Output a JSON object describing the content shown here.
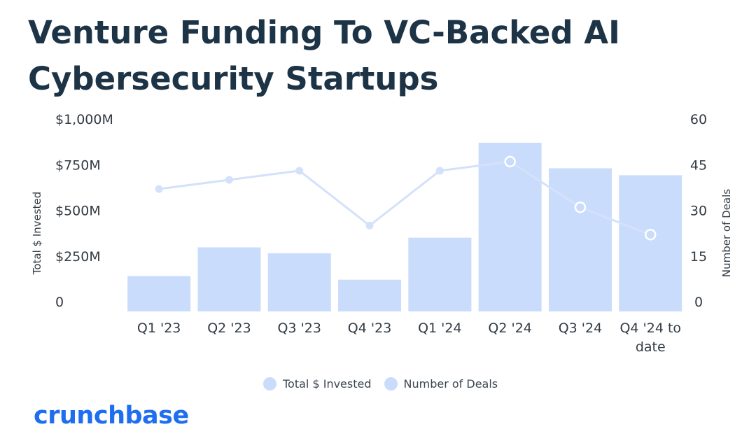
{
  "title_line1": "Venture Funding To VC-Backed AI",
  "title_line2": "Cybersecurity Startups",
  "logo_text": "crunchbase",
  "colors": {
    "bar": "#cadcfc",
    "line": "#d4e1fa",
    "title": "#1d3447",
    "logo": "#1f6ef0",
    "text": "#333b44"
  },
  "chart_data": {
    "type": "bar",
    "categories": [
      "Q1 '23",
      "Q2 '23",
      "Q3 '23",
      "Q4 '23",
      "Q1 '24",
      "Q2 '24",
      "Q3 '24",
      "Q4 '24 to date"
    ],
    "series": [
      {
        "name": "Total $ Invested",
        "type": "bar",
        "axis": "left",
        "values": [
          140,
          297,
          265,
          120,
          350,
          870,
          730,
          692
        ]
      },
      {
        "name": "Number of Deals",
        "type": "line",
        "axis": "right",
        "values": [
          37,
          40,
          43,
          25,
          43,
          46,
          31,
          22
        ]
      }
    ],
    "y_left": {
      "label": "Total $ Invested",
      "ylim": [
        0,
        1000
      ],
      "ticks": [
        0,
        250,
        500,
        750,
        1000
      ],
      "tick_labels": [
        "0",
        "$250M",
        "$500M",
        "$750M",
        "$1,000M"
      ]
    },
    "y_right": {
      "label": "Number of Deals",
      "ylim": [
        0,
        60
      ],
      "ticks": [
        0,
        15,
        30,
        45,
        60
      ],
      "tick_labels": [
        "0",
        "15",
        "30",
        "45",
        "60"
      ]
    },
    "legend": {
      "position": "bottom",
      "entries": [
        "Total $ Invested",
        "Number of Deals"
      ]
    },
    "grid": false
  }
}
